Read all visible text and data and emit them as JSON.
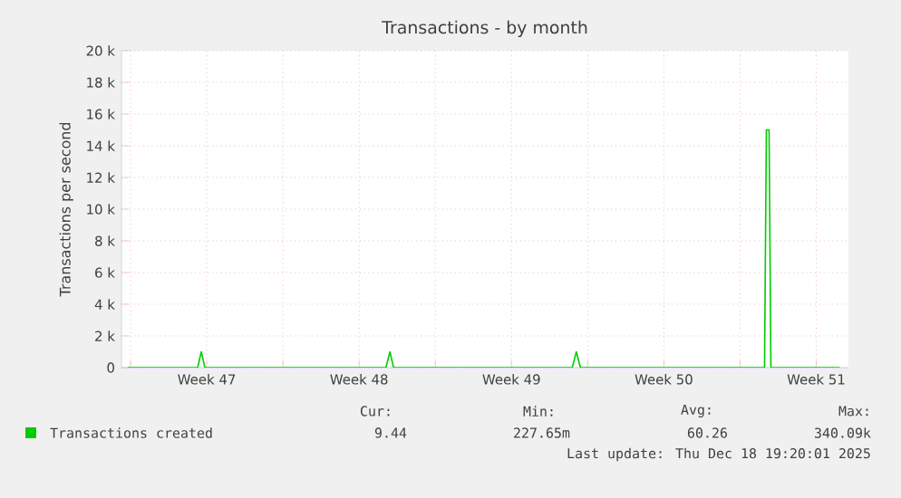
{
  "chart_data": {
    "type": "line",
    "title": "Transactions - by month",
    "ylabel": "Transactions per second",
    "xlim": [
      "2025-11-16T14:00",
      "2025-12-19T23:30"
    ],
    "ylim": [
      0,
      20000
    ],
    "xticks": [
      {
        "value": "2025-11-17T00:00",
        "label": null
      },
      {
        "value": "2025-11-20T12:00",
        "label": "Week 47"
      },
      {
        "value": "2025-11-24T00:00",
        "label": null
      },
      {
        "value": "2025-11-27T12:00",
        "label": "Week 48"
      },
      {
        "value": "2025-12-01T00:00",
        "label": null
      },
      {
        "value": "2025-12-04T12:00",
        "label": "Week 49"
      },
      {
        "value": "2025-12-08T00:00",
        "label": null
      },
      {
        "value": "2025-12-11T12:00",
        "label": "Week 50"
      },
      {
        "value": "2025-12-15T00:00",
        "label": null
      },
      {
        "value": "2025-12-18T12:00",
        "label": "Week 51"
      }
    ],
    "yticks": [
      0,
      {
        "value": 2000,
        "label": "2 k"
      },
      {
        "value": 4000,
        "label": "4 k"
      },
      {
        "value": 6000,
        "label": "6 k"
      },
      {
        "value": 8000,
        "label": "8 k"
      },
      {
        "value": 10000,
        "label": "10 k"
      },
      {
        "value": 12000,
        "label": "12 k"
      },
      {
        "value": 14000,
        "label": "14 k"
      },
      {
        "value": 16000,
        "label": "16 k"
      },
      {
        "value": 18000,
        "label": "18 k"
      },
      {
        "value": 20000,
        "label": "20 k"
      }
    ],
    "grid": true,
    "legend": "bottom left",
    "marker": "none",
    "line_style": "solid",
    "series": [
      {
        "name": "Transactions created",
        "color": "#00cc00",
        "x": [
          "2025-11-16T21:00",
          "2025-11-17T14:00",
          "2025-11-18T14:00",
          "2025-11-19T14:00",
          "2025-11-20T02:00",
          "2025-11-20T06:00",
          "2025-11-20T10:00",
          "2025-11-21T14:00",
          "2025-11-22T14:00",
          "2025-11-23T14:00",
          "2025-11-24T14:00",
          "2025-11-25T14:00",
          "2025-11-26T14:00",
          "2025-11-27T14:00",
          "2025-11-28T17:30",
          "2025-11-28T22:00",
          "2025-11-29T02:00",
          "2025-11-29T14:00",
          "2025-11-30T14:00",
          "2025-12-01T14:00",
          "2025-12-02T14:00",
          "2025-12-03T14:00",
          "2025-12-04T14:00",
          "2025-12-05T14:00",
          "2025-12-06T14:00",
          "2025-12-07T07:00",
          "2025-12-07T11:30",
          "2025-12-07T16:00",
          "2025-12-08T14:00",
          "2025-12-09T14:00",
          "2025-12-10T14:00",
          "2025-12-11T14:00",
          "2025-12-12T14:00",
          "2025-12-13T14:00",
          "2025-12-14T14:00",
          "2025-12-15T14:00",
          "2025-12-16T03:00",
          "2025-12-16T05:00",
          "2025-12-16T08:00",
          "2025-12-16T10:00",
          "2025-12-17T02:00",
          "2025-12-17T14:00",
          "2025-12-18T14:00",
          "2025-12-19T14:00"
        ],
        "values": [
          0,
          0,
          0,
          0,
          0,
          1000,
          0,
          0,
          0,
          0,
          0,
          0,
          0,
          0,
          0,
          1000,
          0,
          0,
          0,
          0,
          0,
          0,
          0,
          0,
          0,
          0,
          1000,
          0,
          0,
          0,
          0,
          0,
          0,
          0,
          0,
          0,
          0,
          15000,
          15000,
          0,
          0,
          0,
          0,
          0
        ]
      }
    ],
    "annotations": [
      "Cur:",
      "9.44",
      "Min:",
      "227.65m",
      "Avg:",
      "60.26",
      "Max:",
      "340.09k",
      "Last update: Thu Dec 18 19:20:01 2025"
    ]
  }
}
